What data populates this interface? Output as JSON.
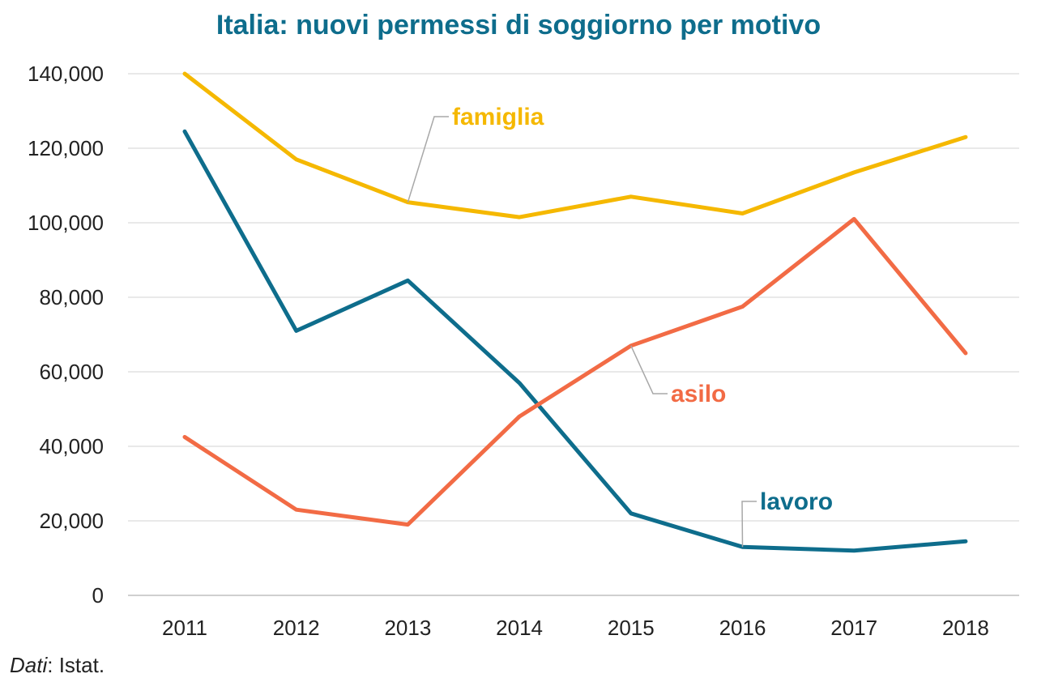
{
  "chart_data": {
    "type": "line",
    "title": "Italia: nuovi permessi di soggiorno per motivo",
    "xlabel": "",
    "ylabel": "",
    "categories": [
      "2011",
      "2012",
      "2013",
      "2014",
      "2015",
      "2016",
      "2017",
      "2018"
    ],
    "ylim": [
      0,
      140000
    ],
    "yticks": [
      "0",
      "20,000",
      "40,000",
      "60,000",
      "80,000",
      "100,000",
      "120,000",
      "140,000"
    ],
    "grid": true,
    "series": [
      {
        "name": "famiglia",
        "color": "#f5b800",
        "values": [
          140000,
          117000,
          105500,
          101500,
          107000,
          102500,
          113500,
          123000
        ]
      },
      {
        "name": "lavoro",
        "color": "#0e6d8c",
        "values": [
          124500,
          71000,
          84500,
          57000,
          22000,
          13000,
          12000,
          14500
        ]
      },
      {
        "name": "asilo",
        "color": "#f26b45",
        "values": [
          42500,
          23000,
          19000,
          48000,
          67000,
          77500,
          101000,
          65000
        ]
      }
    ]
  },
  "source": {
    "prefix": "Dati",
    "text": ": Istat."
  }
}
